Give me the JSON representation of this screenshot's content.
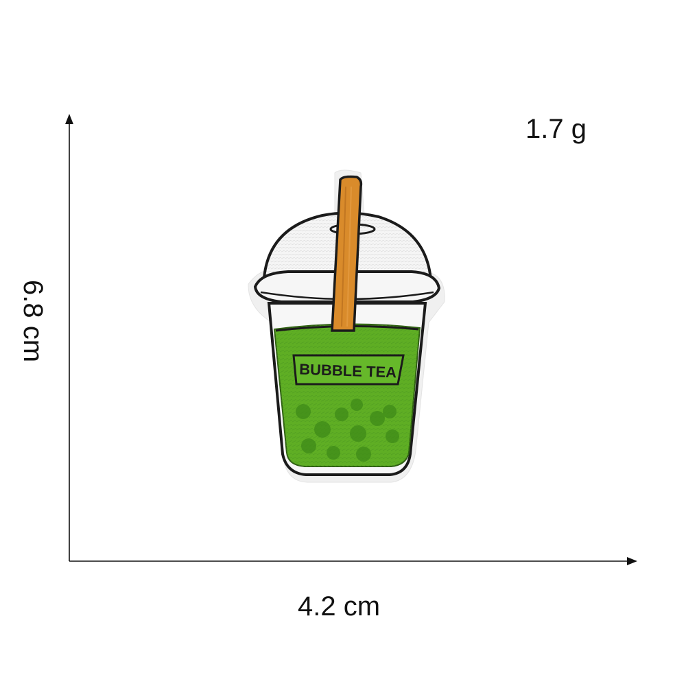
{
  "dimensions": {
    "weight": "1.7 g",
    "height": "6.8 cm",
    "width": "4.2 cm"
  },
  "patch": {
    "cup_text": "BUBBLE TEA",
    "colors": {
      "tea_green": "#5fae24",
      "tea_dark": "#3f7f16",
      "straw": "#d98b2b",
      "outline": "#1b1b1b",
      "lid": "#f3f3f3",
      "felt": "#f1f1f1"
    }
  }
}
